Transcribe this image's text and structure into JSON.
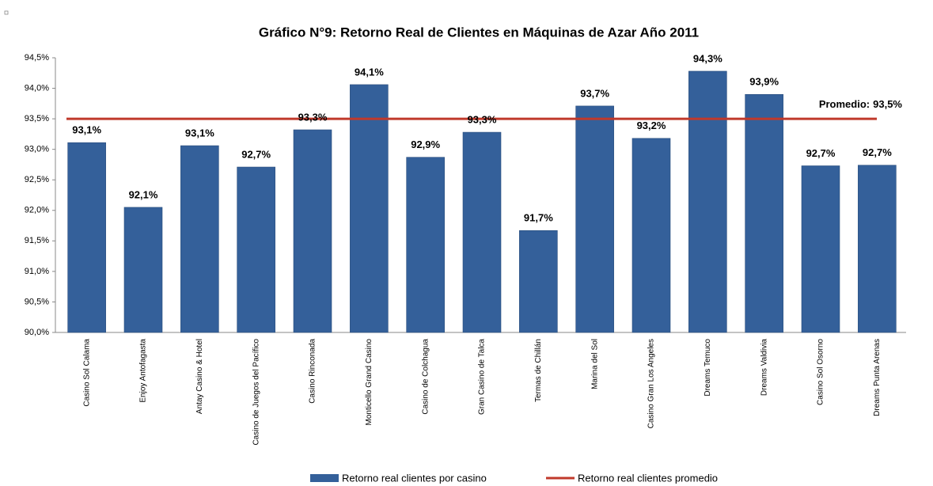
{
  "chart_data": {
    "type": "bar",
    "title": "Gráfico N°9:  Retorno Real de Clientes en Máquinas de Azar Año 2011",
    "categories": [
      "Casino Sol Calama",
      "Enjoy Antofagasta",
      "Antay Casino & Hotel",
      "Casino de Juegos del Pacífico",
      "Casino Rinconada",
      "Monticello Grand Casino",
      "Casino de Colchagua",
      "Gran Casino de Talca",
      "Termas de Chillán",
      "Marina del Sol",
      "Casino Gran Los Angeles",
      "Dreams Temuco",
      "Dreams Valdivia",
      "Casino Sol Osorno",
      "Dreams Punta Arenas"
    ],
    "series": [
      {
        "name": "Retorno real clientes por casino",
        "color": "#34609a",
        "values": [
          93.11,
          92.05,
          93.06,
          92.71,
          93.32,
          94.06,
          92.87,
          93.28,
          91.67,
          93.71,
          93.18,
          94.28,
          93.9,
          92.73,
          92.74
        ],
        "value_labels": [
          "93,1%",
          "92,1%",
          "93,1%",
          "92,7%",
          "93,3%",
          "94,1%",
          "92,9%",
          "93,3%",
          "91,7%",
          "93,7%",
          "93,2%",
          "94,3%",
          "93,9%",
          "92,7%",
          "92,7%"
        ]
      }
    ],
    "average": {
      "name": "Retorno real clientes promedio",
      "color": "#c0392b",
      "value": 93.5,
      "label": "Promedio:",
      "value_label": "93,5%"
    },
    "ylim": [
      90,
      94.5
    ],
    "yticks": [
      {
        "value": 90,
        "label": "90,0%"
      },
      {
        "value": 90.5,
        "label": "90,5%"
      },
      {
        "value": 91,
        "label": "91,0%"
      },
      {
        "value": 91.5,
        "label": "91,5%"
      },
      {
        "value": 92,
        "label": "92,0%"
      },
      {
        "value": 92.5,
        "label": "92,5%"
      },
      {
        "value": 93,
        "label": "93,0%"
      },
      {
        "value": 93.5,
        "label": "93,5%"
      },
      {
        "value": 94,
        "label": "94,0%"
      },
      {
        "value": 94.5,
        "label": "94,5%"
      }
    ],
    "grid": false
  }
}
